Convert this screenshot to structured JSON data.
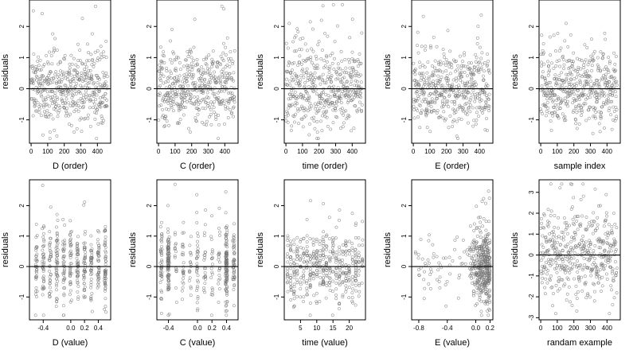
{
  "chart_data": [
    {
      "type": "scatter",
      "panel": "D (order)",
      "xlabel": "D (order)",
      "ylabel": "residuals",
      "xlim": [
        -10,
        480
      ],
      "ylim": [
        -1.75,
        2.85
      ],
      "xticks": [
        0,
        100,
        200,
        300,
        400
      ],
      "xtick_labels": [
        "0",
        "100",
        "200",
        "300",
        "400"
      ],
      "yticks": [
        -1,
        0,
        1,
        2
      ],
      "ytick_labels": [
        "-1",
        "0",
        "1",
        "2"
      ],
      "reference_line": 0,
      "distribution": {
        "kind": "order",
        "n": 460,
        "x_range": [
          0,
          460
        ],
        "y_center": 0.0,
        "y_sd": 0.6,
        "y_range": [
          -1.6,
          2.7
        ]
      },
      "marker": "open-circle",
      "grid": false
    },
    {
      "type": "scatter",
      "panel": "C (order)",
      "xlabel": "C (order)",
      "ylabel": "residuals",
      "xlim": [
        -10,
        480
      ],
      "ylim": [
        -1.75,
        2.85
      ],
      "xticks": [
        0,
        100,
        200,
        300,
        400
      ],
      "xtick_labels": [
        "0",
        "100",
        "200",
        "300",
        "400"
      ],
      "yticks": [
        -1,
        0,
        1,
        2
      ],
      "ytick_labels": [
        "-1",
        "0",
        "1",
        "2"
      ],
      "reference_line": 0,
      "distribution": {
        "kind": "order",
        "n": 460,
        "x_range": [
          0,
          460
        ],
        "y_center": 0.0,
        "y_sd": 0.6,
        "y_range": [
          -1.6,
          2.7
        ]
      },
      "marker": "open-circle",
      "grid": false
    },
    {
      "type": "scatter",
      "panel": "time (order)",
      "xlabel": "time (order)",
      "ylabel": "residuals",
      "xlim": [
        -10,
        480
      ],
      "ylim": [
        -1.75,
        2.85
      ],
      "xticks": [
        0,
        100,
        200,
        300,
        400
      ],
      "xtick_labels": [
        "0",
        "100",
        "200",
        "300",
        "400"
      ],
      "yticks": [
        -1,
        0,
        1,
        2
      ],
      "ytick_labels": [
        "-1",
        "0",
        "1",
        "2"
      ],
      "reference_line": 0,
      "distribution": {
        "kind": "order",
        "n": 460,
        "x_range": [
          0,
          460
        ],
        "y_center": 0.0,
        "y_sd": 0.6,
        "y_range": [
          -1.6,
          2.7
        ]
      },
      "marker": "open-circle",
      "grid": false
    },
    {
      "type": "scatter",
      "panel": "E (order)",
      "xlabel": "E (order)",
      "ylabel": "residuals",
      "xlim": [
        -10,
        480
      ],
      "ylim": [
        -1.75,
        2.85
      ],
      "xticks": [
        0,
        100,
        200,
        300,
        400
      ],
      "xtick_labels": [
        "0",
        "100",
        "200",
        "300",
        "400"
      ],
      "yticks": [
        -1,
        0,
        1,
        2
      ],
      "ytick_labels": [
        "-1",
        "0",
        "1",
        "2"
      ],
      "reference_line": 0,
      "distribution": {
        "kind": "order",
        "n": 460,
        "x_range": [
          0,
          460
        ],
        "y_center": 0.0,
        "y_sd": 0.6,
        "y_range": [
          -1.6,
          2.7
        ]
      },
      "marker": "open-circle",
      "grid": false
    },
    {
      "type": "scatter",
      "panel": "sample index",
      "xlabel": "sample index",
      "ylabel": "residuals",
      "xlim": [
        -10,
        480
      ],
      "ylim": [
        -1.75,
        2.85
      ],
      "xticks": [
        0,
        100,
        200,
        300,
        400
      ],
      "xtick_labels": [
        "0",
        "100",
        "200",
        "300",
        "400"
      ],
      "yticks": [
        -1,
        0,
        1,
        2
      ],
      "ytick_labels": [
        "-1",
        "0",
        "1",
        "2"
      ],
      "reference_line": 0,
      "distribution": {
        "kind": "order",
        "n": 460,
        "x_range": [
          0,
          460
        ],
        "y_center": 0.0,
        "y_sd": 0.6,
        "y_range": [
          -1.6,
          2.7
        ]
      },
      "marker": "open-circle",
      "grid": false
    },
    {
      "type": "scatter",
      "panel": "D (value)",
      "xlabel": "D (value)",
      "ylabel": "residuals",
      "xlim": [
        -0.6,
        0.58
      ],
      "ylim": [
        -1.75,
        2.85
      ],
      "xticks": [
        -0.4,
        0.0,
        0.2,
        0.4
      ],
      "xtick_labels": [
        "-0.4",
        "0.0",
        "0.2",
        "0.4"
      ],
      "yticks": [
        -1,
        0,
        1,
        2
      ],
      "ytick_labels": [
        "-1",
        "0",
        "1",
        "2"
      ],
      "reference_line": 0,
      "distribution": {
        "kind": "value-columns",
        "n": 460,
        "x_columns": [
          -0.5,
          -0.4,
          -0.3,
          -0.2,
          -0.1,
          0.0,
          0.1,
          0.2,
          0.3,
          0.4,
          0.5
        ],
        "y_center": 0.0,
        "y_sd": 0.6,
        "y_range": [
          -1.6,
          2.7
        ]
      },
      "marker": "open-circle",
      "grid": false
    },
    {
      "type": "scatter",
      "panel": "C (value)",
      "xlabel": "C (value)",
      "ylabel": "residuals",
      "xlim": [
        -0.56,
        0.56
      ],
      "ylim": [
        -1.75,
        2.85
      ],
      "xticks": [
        -0.4,
        0.0,
        0.2,
        0.4
      ],
      "xtick_labels": [
        "-0.4",
        "0.0",
        "0.2",
        "0.4"
      ],
      "yticks": [
        -1,
        0,
        1,
        2
      ],
      "ytick_labels": [
        "-1",
        "0",
        "1",
        "2"
      ],
      "reference_line": 0,
      "distribution": {
        "kind": "value-columns",
        "n": 460,
        "x_columns": [
          -0.5,
          -0.4,
          -0.3,
          -0.2,
          -0.1,
          0.0,
          0.1,
          0.2,
          0.3,
          0.4,
          0.5
        ],
        "column_weights": [
          4,
          8,
          2,
          2,
          2,
          2,
          2,
          2,
          2,
          8,
          4
        ],
        "y_center": 0.0,
        "y_sd": 0.6,
        "y_range": [
          -1.6,
          2.7
        ]
      },
      "marker": "open-circle",
      "grid": false
    },
    {
      "type": "scatter",
      "panel": "time (value)",
      "xlabel": "time (value)",
      "ylabel": "residuals",
      "xlim": [
        0,
        25
      ],
      "ylim": [
        -1.75,
        2.85
      ],
      "xticks": [
        5,
        10,
        15,
        20
      ],
      "xtick_labels": [
        "5",
        "10",
        "15",
        "20"
      ],
      "yticks": [
        -1,
        0,
        1,
        2
      ],
      "ytick_labels": [
        "-1",
        "0",
        "1",
        "2"
      ],
      "reference_line": 0,
      "distribution": {
        "kind": "value-columns",
        "n": 460,
        "x_columns": [
          1,
          2,
          3,
          4,
          5,
          6,
          7,
          8,
          9,
          10,
          11,
          12,
          13,
          14,
          15,
          16,
          17,
          18,
          19,
          20,
          21,
          22,
          23,
          24
        ],
        "y_center": 0.0,
        "y_sd": 0.6,
        "y_range": [
          -1.6,
          2.7
        ]
      },
      "marker": "open-circle",
      "grid": false
    },
    {
      "type": "scatter",
      "panel": "E (value)",
      "xlabel": "E (value)",
      "ylabel": "residuals",
      "xlim": [
        -0.9,
        0.24
      ],
      "ylim": [
        -1.75,
        2.85
      ],
      "xticks": [
        -0.8,
        -0.4,
        0.0,
        0.2
      ],
      "xtick_labels": [
        "-0.8",
        "-0.4",
        "0.0",
        "0.2"
      ],
      "yticks": [
        -1,
        0,
        1,
        2
      ],
      "ytick_labels": [
        "-1",
        "0",
        "1",
        "2"
      ],
      "reference_line": 0,
      "distribution": {
        "kind": "skewed-left",
        "n": 460,
        "x_range": [
          -0.85,
          0.2
        ],
        "dense_x_range": [
          -0.1,
          0.2
        ],
        "y_center": 0.0,
        "y_sd": 0.6,
        "y_range": [
          -1.6,
          2.7
        ]
      },
      "marker": "open-circle",
      "grid": false
    },
    {
      "type": "scatter",
      "panel": "randam example",
      "xlabel": "randam example",
      "ylabel": "residuals",
      "xlim": [
        -10,
        480
      ],
      "ylim": [
        -3.1,
        3.6
      ],
      "xticks": [
        0,
        100,
        200,
        300,
        400
      ],
      "xtick_labels": [
        "0",
        "100",
        "200",
        "300",
        "400"
      ],
      "yticks": [
        -3,
        -2,
        -1,
        0,
        1,
        2,
        3
      ],
      "ytick_labels": [
        "-3",
        "-2",
        "-1",
        "0",
        "1",
        "2",
        "3"
      ],
      "reference_line": 0,
      "distribution": {
        "kind": "order",
        "n": 460,
        "x_range": [
          0,
          460
        ],
        "y_center": 0.0,
        "y_sd": 1.0,
        "y_range": [
          -2.8,
          3.4
        ]
      },
      "marker": "open-circle",
      "grid": false
    }
  ]
}
